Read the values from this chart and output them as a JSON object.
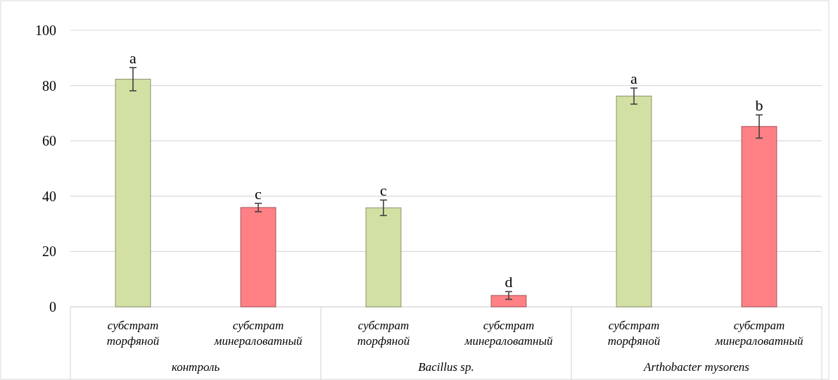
{
  "chart_data": {
    "type": "bar",
    "categories": [
      "субстрат торфяной",
      "субстрат минераловатный",
      "субстрат торфяной",
      "субстрат минераловатный",
      "субстрат торфяной",
      "субстрат минераловатный"
    ],
    "values": [
      82.3,
      35.9,
      35.8,
      4.1,
      76.2,
      65.2
    ],
    "colors": [
      "#d2e1a3",
      "#ff8085",
      "#d2e1a3",
      "#ff8085",
      "#d2e1a3",
      "#ff8085"
    ],
    "errors": [
      4.2,
      1.5,
      2.8,
      1.4,
      2.9,
      4.2
    ],
    "value_labels": [
      "a",
      "c",
      "c",
      "d",
      "a",
      "b"
    ],
    "annotations": [
      "контроль",
      "Bacillus sp.",
      "Arthobacter mysorens"
    ],
    "ylim": [
      0,
      100
    ],
    "yticks": [
      0,
      20,
      40,
      60,
      80,
      100
    ],
    "grid": "y"
  }
}
